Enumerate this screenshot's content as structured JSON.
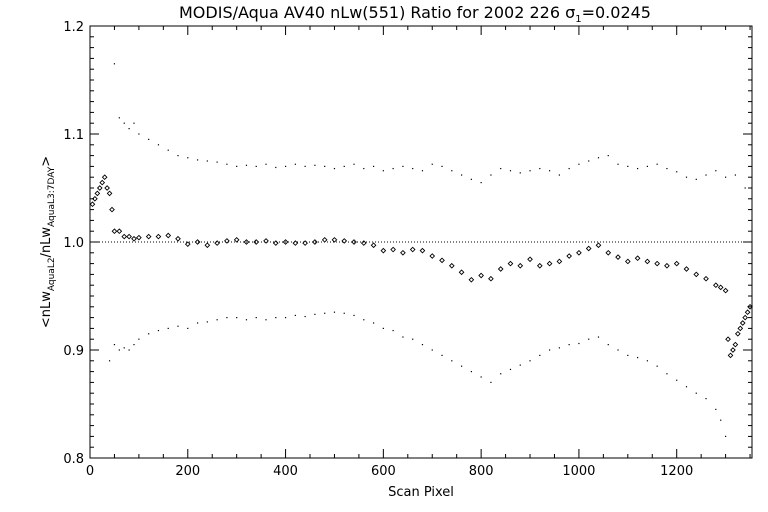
{
  "chart_data": {
    "type": "scatter",
    "title": {
      "main": "MODIS/Aqua AV40 nLw(551) Ratio for 2002 226 ",
      "sigma_symbol": "σ",
      "sigma_subscript": "1",
      "sigma_value": "=0.0245"
    },
    "xlabel": "Scan Pixel",
    "ylabel": {
      "prefix": "<nLw",
      "sub1": "AquaL2",
      "middle": "/nLw",
      "sub2": "AquaL3:7DAY",
      "suffix": ">"
    },
    "xlim": [
      0,
      1354
    ],
    "ylim": [
      0.8,
      1.2
    ],
    "x_ticks": [
      0,
      200,
      400,
      600,
      800,
      1000,
      1200
    ],
    "y_ticks": [
      0.8,
      0.9,
      1.0,
      1.1,
      1.2
    ],
    "x_tick_labels": [
      "0",
      "200",
      "400",
      "600",
      "800",
      "1000",
      "1200"
    ],
    "y_tick_labels": [
      "0.8",
      "0.9",
      "1.0",
      "1.1",
      "1.2"
    ],
    "reference_line": 1.0,
    "colors": {
      "marks": "#000000",
      "background": "#ffffff"
    },
    "series": [
      {
        "role": "mean_ratio",
        "marker": "diamond",
        "x": [
          5,
          10,
          15,
          20,
          25,
          30,
          35,
          40,
          45,
          50,
          60,
          70,
          80,
          90,
          100,
          120,
          140,
          160,
          180,
          200,
          220,
          240,
          260,
          280,
          300,
          320,
          340,
          360,
          380,
          400,
          420,
          440,
          460,
          480,
          500,
          520,
          540,
          560,
          580,
          600,
          620,
          640,
          660,
          680,
          700,
          720,
          740,
          760,
          780,
          800,
          820,
          840,
          860,
          880,
          900,
          920,
          940,
          960,
          980,
          1000,
          1020,
          1040,
          1060,
          1080,
          1100,
          1120,
          1140,
          1160,
          1180,
          1200,
          1220,
          1240,
          1260,
          1280,
          1290,
          1300,
          1305,
          1310,
          1315,
          1320,
          1325,
          1330,
          1335,
          1340,
          1345,
          1350
        ],
        "y": [
          1.035,
          1.04,
          1.045,
          1.05,
          1.055,
          1.06,
          1.05,
          1.045,
          1.03,
          1.01,
          1.01,
          1.005,
          1.005,
          1.003,
          1.004,
          1.005,
          1.005,
          1.006,
          1.003,
          0.998,
          1.0,
          0.997,
          0.999,
          1.001,
          1.002,
          1.0,
          1.0,
          1.001,
          0.999,
          1.0,
          0.999,
          0.999,
          1.0,
          1.002,
          1.002,
          1.001,
          1.0,
          0.999,
          0.997,
          0.992,
          0.993,
          0.99,
          0.993,
          0.992,
          0.987,
          0.983,
          0.978,
          0.972,
          0.965,
          0.969,
          0.966,
          0.975,
          0.98,
          0.978,
          0.984,
          0.978,
          0.98,
          0.982,
          0.987,
          0.99,
          0.994,
          0.997,
          0.99,
          0.986,
          0.982,
          0.985,
          0.982,
          0.98,
          0.978,
          0.98,
          0.975,
          0.97,
          0.966,
          0.96,
          0.958,
          0.955,
          0.91,
          0.895,
          0.9,
          0.905,
          0.915,
          0.92,
          0.925,
          0.93,
          0.935,
          0.94
        ]
      },
      {
        "role": "upper_envelope",
        "marker": "dot",
        "x": [
          50,
          60,
          70,
          80,
          90,
          100,
          120,
          140,
          160,
          180,
          200,
          220,
          240,
          260,
          280,
          300,
          320,
          340,
          360,
          380,
          400,
          420,
          440,
          460,
          480,
          500,
          520,
          540,
          560,
          580,
          600,
          620,
          640,
          660,
          680,
          700,
          720,
          740,
          760,
          780,
          800,
          820,
          840,
          860,
          880,
          900,
          920,
          940,
          960,
          980,
          1000,
          1020,
          1040,
          1060,
          1080,
          1100,
          1120,
          1140,
          1160,
          1180,
          1200,
          1220,
          1240,
          1260,
          1280,
          1300,
          1320,
          1340
        ],
        "y": [
          1.165,
          1.115,
          1.11,
          1.105,
          1.11,
          1.1,
          1.095,
          1.09,
          1.085,
          1.08,
          1.078,
          1.076,
          1.075,
          1.074,
          1.072,
          1.07,
          1.071,
          1.07,
          1.072,
          1.069,
          1.07,
          1.072,
          1.07,
          1.071,
          1.07,
          1.068,
          1.07,
          1.072,
          1.068,
          1.07,
          1.066,
          1.068,
          1.07,
          1.068,
          1.066,
          1.072,
          1.07,
          1.066,
          1.062,
          1.058,
          1.055,
          1.062,
          1.068,
          1.066,
          1.064,
          1.066,
          1.068,
          1.066,
          1.062,
          1.068,
          1.072,
          1.075,
          1.078,
          1.08,
          1.072,
          1.07,
          1.068,
          1.07,
          1.072,
          1.068,
          1.065,
          1.06,
          1.058,
          1.062,
          1.066,
          1.06,
          1.062,
          1.05
        ]
      },
      {
        "role": "lower_envelope",
        "marker": "dot",
        "x": [
          40,
          50,
          60,
          70,
          80,
          90,
          100,
          120,
          140,
          160,
          180,
          200,
          220,
          240,
          260,
          280,
          300,
          320,
          340,
          360,
          380,
          400,
          420,
          440,
          460,
          480,
          500,
          520,
          540,
          560,
          580,
          600,
          620,
          640,
          660,
          680,
          700,
          720,
          740,
          760,
          780,
          800,
          820,
          840,
          860,
          880,
          900,
          920,
          940,
          960,
          980,
          1000,
          1020,
          1040,
          1060,
          1080,
          1100,
          1120,
          1140,
          1160,
          1180,
          1200,
          1220,
          1240,
          1260,
          1280,
          1290,
          1300
        ],
        "y": [
          0.89,
          0.905,
          0.9,
          0.902,
          0.9,
          0.905,
          0.91,
          0.915,
          0.918,
          0.92,
          0.922,
          0.92,
          0.925,
          0.926,
          0.928,
          0.93,
          0.93,
          0.928,
          0.93,
          0.928,
          0.93,
          0.93,
          0.932,
          0.931,
          0.933,
          0.934,
          0.935,
          0.934,
          0.932,
          0.928,
          0.925,
          0.92,
          0.918,
          0.912,
          0.91,
          0.905,
          0.9,
          0.895,
          0.89,
          0.885,
          0.88,
          0.875,
          0.87,
          0.878,
          0.882,
          0.886,
          0.89,
          0.895,
          0.9,
          0.902,
          0.905,
          0.906,
          0.91,
          0.912,
          0.905,
          0.9,
          0.895,
          0.893,
          0.89,
          0.885,
          0.878,
          0.872,
          0.866,
          0.86,
          0.855,
          0.845,
          0.835,
          0.82
        ]
      }
    ]
  }
}
